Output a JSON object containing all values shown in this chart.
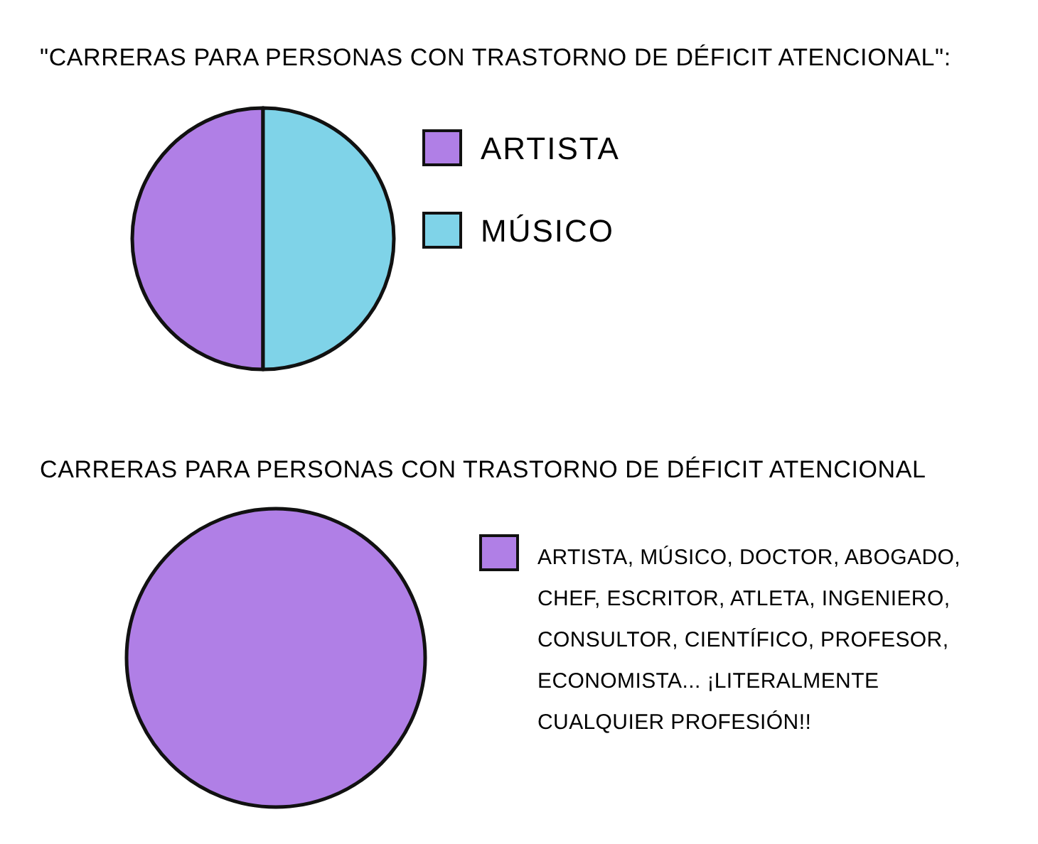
{
  "chart_data": [
    {
      "type": "pie",
      "title": "\"CARRERAS PARA PERSONAS CON TRASTORNO DE DÉFICIT ATENCIONAL\":",
      "categories": [
        "ARTISTA",
        "MÚSICO"
      ],
      "values": [
        50,
        50
      ],
      "colors": [
        "#b07fe6",
        "#7fd3e8"
      ],
      "legend": "right"
    },
    {
      "type": "pie",
      "title": "CARRERAS PARA PERSONAS CON TRASTORNO DE DÉFICIT ATENCIONAL",
      "categories": [
        "ARTISTA, MÚSICO, DOCTOR, ABOGADO, CHEF, ESCRITOR, ATLETA, INGENIERO, CONSULTOR, CIENTÍFICO, PROFESOR, ECONOMISTA... ¡LITERALMENTE CUALQUIER PROFESIÓN!!"
      ],
      "values": [
        100
      ],
      "colors": [
        "#b07fe6"
      ],
      "legend": "right"
    }
  ]
}
